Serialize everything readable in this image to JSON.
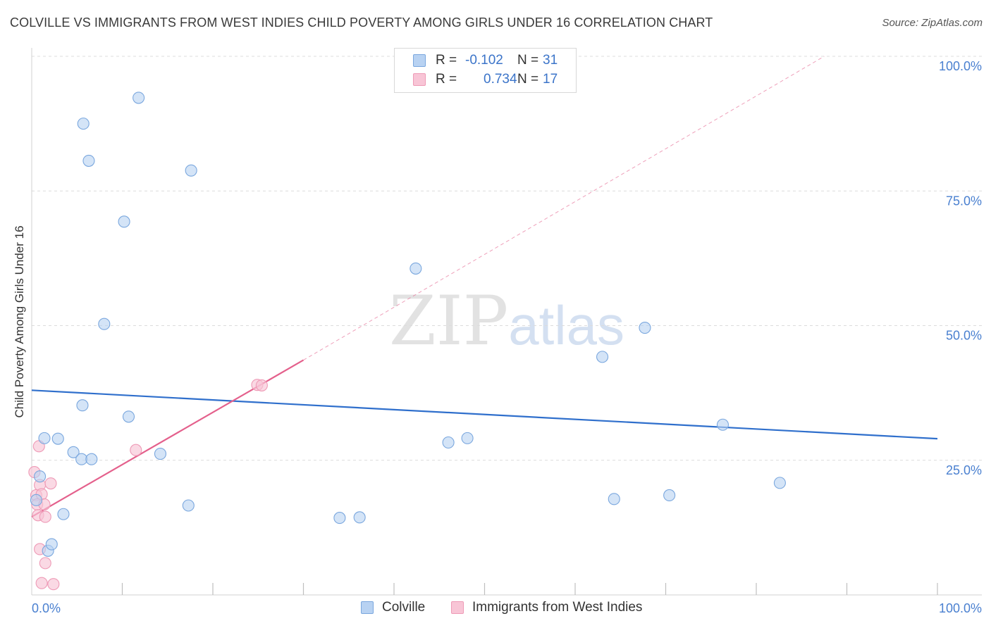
{
  "header": {
    "title": "COLVILLE VS IMMIGRANTS FROM WEST INDIES CHILD POVERTY AMONG GIRLS UNDER 16 CORRELATION CHART",
    "source": "Source: ZipAtlas.com"
  },
  "watermark": {
    "zip": "ZIP",
    "atlas": "atlas"
  },
  "legend": {
    "series1": {
      "r_label": "R =",
      "r_value": "-0.102",
      "n_label": "N =",
      "n_value": "31"
    },
    "series2": {
      "r_label": "R =",
      "r_value": "0.734",
      "n_label": "N =",
      "n_value": "17"
    }
  },
  "colors": {
    "colville_fill": "#b8d2f2",
    "colville_stroke": "#7aa7de",
    "colville_line": "#2f6fcc",
    "westindies_fill": "#f8c5d6",
    "westindies_stroke": "#ee9ab6",
    "westindies_line": "#e4608c",
    "grid": "#dcdcdc",
    "tick_text": "#4a80d0"
  },
  "chart_data": {
    "type": "scatter",
    "title": "COLVILLE VS IMMIGRANTS FROM WEST INDIES CHILD POVERTY AMONG GIRLS UNDER 16 CORRELATION CHART",
    "xlabel": "",
    "ylabel": "Child Poverty Among Girls Under 16",
    "xlim": [
      0,
      100
    ],
    "ylim": [
      0,
      100
    ],
    "x_tick_labels": [
      "0.0%",
      "100.0%"
    ],
    "y_ticks": [
      {
        "value": 25,
        "label": "25.0%"
      },
      {
        "value": 50,
        "label": "50.0%"
      },
      {
        "value": 75,
        "label": "75.0%"
      },
      {
        "value": 100,
        "label": "100.0%"
      }
    ],
    "grid": true,
    "legend_position": "top-center",
    "series": [
      {
        "name": "Colville",
        "r": -0.102,
        "n": 31,
        "points": [
          [
            0.5,
            17.6
          ],
          [
            0.9,
            22.0
          ],
          [
            1.4,
            29.1
          ],
          [
            1.8,
            8.2
          ],
          [
            2.2,
            9.4
          ],
          [
            2.9,
            29.0
          ],
          [
            3.5,
            15.0
          ],
          [
            4.6,
            26.5
          ],
          [
            5.5,
            25.2
          ],
          [
            5.6,
            35.2
          ],
          [
            5.7,
            87.5
          ],
          [
            6.3,
            80.6
          ],
          [
            6.6,
            25.2
          ],
          [
            8.0,
            50.3
          ],
          [
            10.2,
            69.3
          ],
          [
            10.7,
            33.1
          ],
          [
            11.8,
            92.3
          ],
          [
            14.2,
            26.2
          ],
          [
            17.3,
            16.6
          ],
          [
            17.6,
            78.8
          ],
          [
            34.0,
            14.3
          ],
          [
            36.2,
            14.4
          ],
          [
            42.4,
            60.6
          ],
          [
            46.0,
            28.3
          ],
          [
            48.1,
            29.1
          ],
          [
            63.0,
            44.2
          ],
          [
            64.3,
            17.8
          ],
          [
            67.7,
            49.6
          ],
          [
            70.4,
            18.5
          ],
          [
            76.3,
            31.6
          ],
          [
            82.6,
            20.8
          ]
        ],
        "trend": {
          "x": [
            0,
            100
          ],
          "y": [
            38.0,
            29.0
          ]
        }
      },
      {
        "name": "Immigrants from West Indies",
        "r": 0.734,
        "n": 17,
        "points": [
          [
            0.3,
            22.8
          ],
          [
            0.5,
            18.5
          ],
          [
            0.6,
            16.8
          ],
          [
            0.7,
            14.8
          ],
          [
            0.8,
            27.6
          ],
          [
            0.9,
            8.5
          ],
          [
            0.9,
            20.4
          ],
          [
            1.1,
            18.7
          ],
          [
            1.1,
            2.2
          ],
          [
            1.4,
            16.8
          ],
          [
            1.5,
            5.9
          ],
          [
            1.5,
            14.5
          ],
          [
            2.1,
            20.7
          ],
          [
            2.4,
            2.0
          ],
          [
            11.5,
            26.9
          ],
          [
            24.9,
            39.0
          ],
          [
            25.4,
            38.9
          ]
        ],
        "trend": {
          "x": [
            0,
            30.0
          ],
          "y": [
            14.5,
            43.6
          ]
        },
        "trend_extended": {
          "x": [
            30.0,
            87.5
          ],
          "y": [
            43.6,
            100
          ]
        }
      }
    ]
  },
  "bottom_legend": {
    "items": [
      {
        "label": "Colville"
      },
      {
        "label": "Immigrants from West Indies"
      }
    ]
  }
}
